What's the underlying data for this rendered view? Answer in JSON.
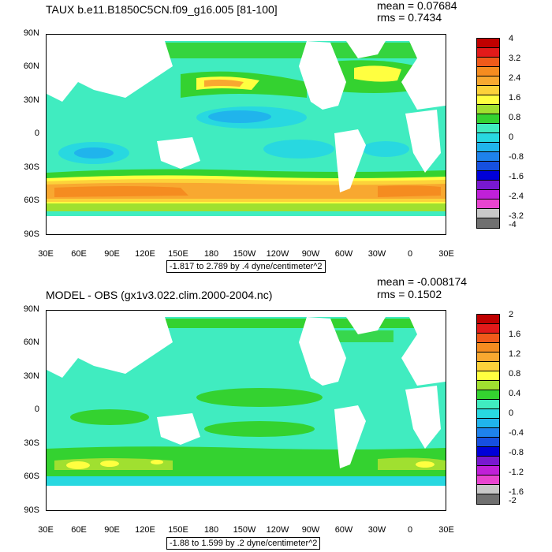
{
  "panels": [
    {
      "id": "top",
      "title": "TAUX b.e11.B1850C5CN.f09_g16.005 [81-100]",
      "mean": "mean = 0.07684",
      "rms": "rms = 0.7434",
      "range_label": "-1.817 to 2.789 by .4 dyne/centimeter^2",
      "lat_labels": [
        "90N",
        "60N",
        "30N",
        "0",
        "30S",
        "60S",
        "90S"
      ],
      "lon_labels": [
        "30E",
        "60E",
        "90E",
        "120E",
        "150E",
        "180",
        "150W",
        "120W",
        "90W",
        "60W",
        "30W",
        "0",
        "30E"
      ],
      "colorbar": {
        "labels": [
          "4",
          "3.2",
          "2.4",
          "1.6",
          "0.8",
          "0",
          "-0.8",
          "-1.6",
          "-2.4",
          "-3.2",
          "-4"
        ],
        "colors": [
          "#c00000",
          "#e21a1a",
          "#f05a1a",
          "#f58c20",
          "#f8a830",
          "#fcd23a",
          "#ffff40",
          "#a0e030",
          "#34d230",
          "#40ecc0",
          "#28d8e0",
          "#20b4ec",
          "#1e82ec",
          "#1650e0",
          "#0000d8",
          "#7818d0",
          "#c020d8",
          "#e844d0",
          "#c8c8c8",
          "#707070"
        ]
      }
    },
    {
      "id": "bottom",
      "title": "MODEL - OBS (gx1v3.022.clim.2000-2004.nc)",
      "mean": "mean = -0.008174",
      "rms": "rms = 0.1502",
      "range_label": "-1.88 to 1.599 by .2 dyne/centimeter^2",
      "lat_labels": [
        "90N",
        "60N",
        "30N",
        "0",
        "30S",
        "60S",
        "90S"
      ],
      "lon_labels": [
        "30E",
        "60E",
        "90E",
        "120E",
        "150E",
        "180",
        "150W",
        "120W",
        "90W",
        "60W",
        "30W",
        "0",
        "30E"
      ],
      "colorbar": {
        "labels": [
          "2",
          "1.6",
          "1.2",
          "0.8",
          "0.4",
          "0",
          "-0.4",
          "-0.8",
          "-1.2",
          "-1.6",
          "-2"
        ],
        "colors": [
          "#c00000",
          "#e21a1a",
          "#f05a1a",
          "#f58c20",
          "#f8a830",
          "#fcd23a",
          "#ffff40",
          "#a0e030",
          "#34d230",
          "#40ecc0",
          "#28d8e0",
          "#20b4ec",
          "#1e82ec",
          "#1650e0",
          "#0000d8",
          "#7818d0",
          "#c020d8",
          "#e844d0",
          "#c8c8c8",
          "#707070"
        ]
      }
    }
  ]
}
